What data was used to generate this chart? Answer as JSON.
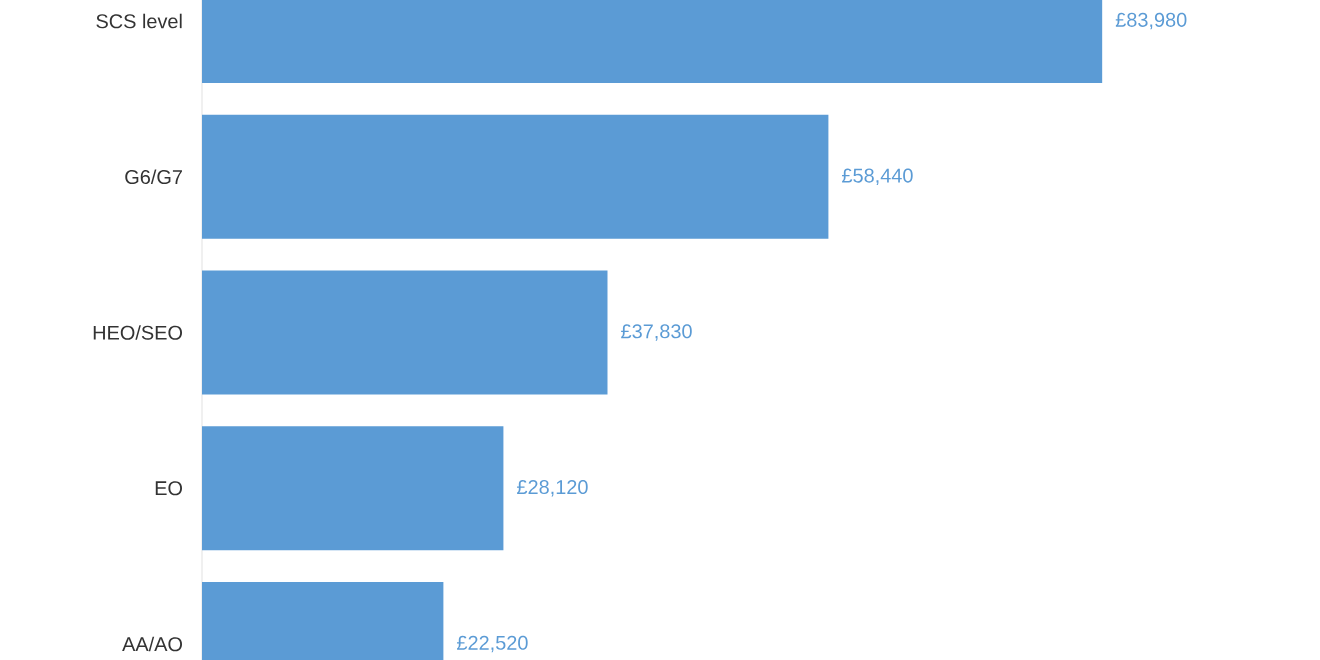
{
  "chart_data": {
    "type": "bar",
    "orientation": "horizontal",
    "categories": [
      "SCS level",
      "G6/G7",
      "HEO/SEO",
      "EO",
      "AA/AO"
    ],
    "values": [
      83980,
      58440,
      37830,
      28120,
      22520
    ],
    "value_labels": [
      "£83,980",
      "£58,440",
      "£37,830",
      "£28,120",
      "£22,520"
    ],
    "color": "#5b9bd5"
  }
}
